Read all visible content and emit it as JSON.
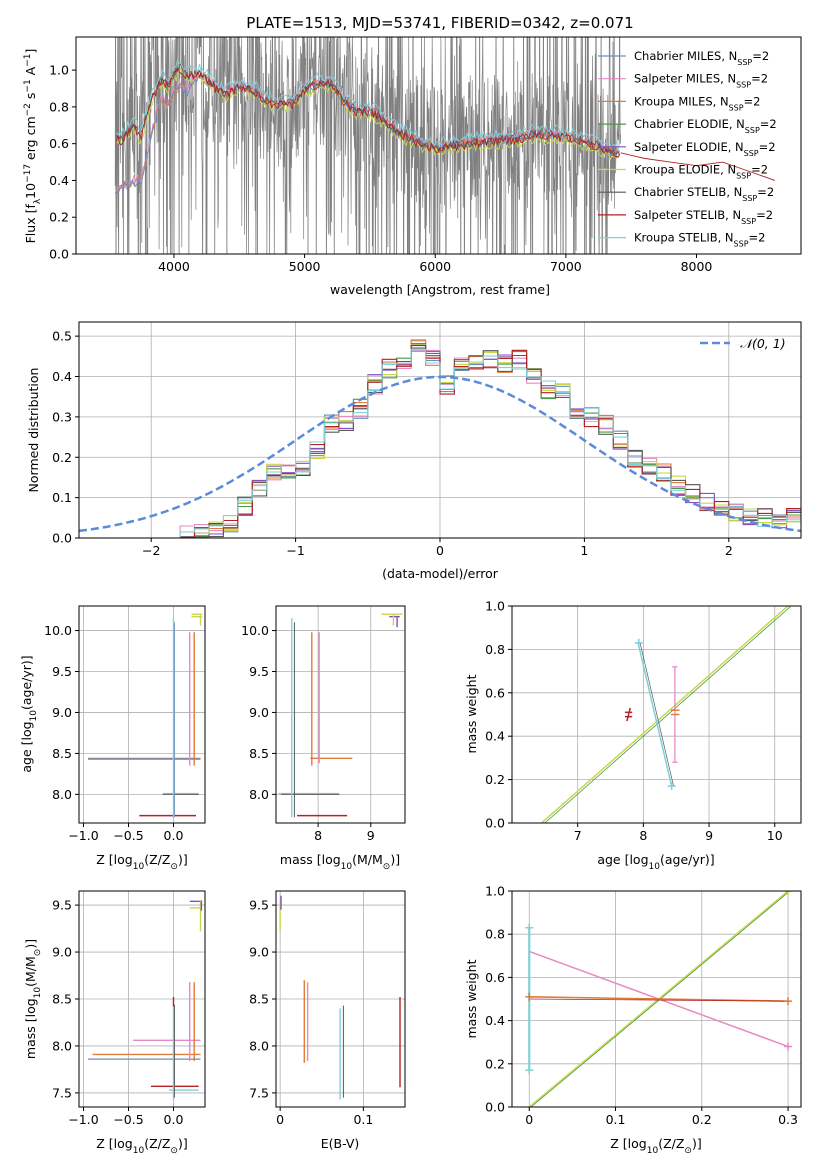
{
  "title": "PLATE=1513, MJD=53741, FIBERID=0342, z=0.071",
  "colors": {
    "gray": "#808080",
    "Chabrier MILES": "#6c8ebf",
    "Salpeter MILES": "#e58ac4",
    "Kroupa MILES": "#e07b39",
    "Chabrier ELODIE": "#4a9a4a",
    "Salpeter ELODIE": "#8a4dbf",
    "Kroupa ELODIE": "#c8d84a",
    "Chabrier STELIB": "#5a5a5a",
    "Salpeter STELIB": "#b22222",
    "Kroupa STELIB": "#7fd0d8",
    "gaussian": "#5b8bd9"
  },
  "chart_data": [
    {
      "id": "spectrum",
      "type": "line",
      "title": "PLATE=1513, MJD=53741, FIBERID=0342, z=0.071",
      "xlabel": "wavelength [Angstrom, rest frame]",
      "ylabel_main": "Flux [f",
      "ylabel_sub": "λ",
      "ylabel_rest": "10",
      "ylabel_exp": "−17",
      "ylabel_tail": " erg cm",
      "ylabel_e2": "−2",
      "ylabel_s": " s",
      "ylabel_e1": "−1",
      "ylabel_A": " A",
      "ylabel_e3": "−1",
      "ylabel_end": "]",
      "xlim": [
        3250,
        8800
      ],
      "ylim": [
        0,
        1.18
      ],
      "xticks": [
        4000,
        5000,
        6000,
        7000,
        8000
      ],
      "yticks": [
        0.0,
        0.2,
        0.4,
        0.6,
        0.8,
        1.0
      ],
      "grid": false,
      "legend_position": "top-right",
      "legend": [
        {
          "label": "Chabrier MILES, N",
          "sub": "SSP",
          "tail": "=2",
          "key": "Chabrier MILES"
        },
        {
          "label": "Salpeter MILES, N",
          "sub": "SSP",
          "tail": "=2",
          "key": "Salpeter MILES"
        },
        {
          "label": "Kroupa MILES, N",
          "sub": "SSP",
          "tail": "=2",
          "key": "Kroupa MILES"
        },
        {
          "label": "Chabrier ELODIE, N",
          "sub": "SSP",
          "tail": "=2",
          "key": "Chabrier ELODIE"
        },
        {
          "label": "Salpeter ELODIE, N",
          "sub": "SSP",
          "tail": "=2",
          "key": "Salpeter ELODIE"
        },
        {
          "label": "Kroupa ELODIE, N",
          "sub": "SSP",
          "tail": "=2",
          "key": "Kroupa ELODIE"
        },
        {
          "label": "Chabrier STELIB, N",
          "sub": "SSP",
          "tail": "=2",
          "key": "Chabrier STELIB"
        },
        {
          "label": "Salpeter STELIB, N",
          "sub": "SSP",
          "tail": "=2",
          "key": "Salpeter STELIB"
        },
        {
          "label": "Kroupa STELIB, N",
          "sub": "SSP",
          "tail": "=2",
          "key": "Kroupa STELIB"
        }
      ],
      "data_range": [
        3550,
        7420
      ],
      "model_stelib": [
        [
          3560,
          0.65
        ],
        [
          3600,
          0.62
        ],
        [
          3650,
          0.68
        ],
        [
          3700,
          0.7
        ],
        [
          3750,
          0.64
        ],
        [
          3800,
          0.78
        ],
        [
          3850,
          0.88
        ],
        [
          3900,
          0.95
        ],
        [
          3950,
          0.92
        ],
        [
          4000,
          0.98
        ],
        [
          4050,
          1.02
        ],
        [
          4100,
          0.97
        ],
        [
          4200,
          0.99
        ],
        [
          4300,
          0.92
        ],
        [
          4400,
          0.87
        ],
        [
          4500,
          0.92
        ],
        [
          4600,
          0.9
        ],
        [
          4700,
          0.84
        ],
        [
          4800,
          0.82
        ],
        [
          4900,
          0.82
        ],
        [
          5000,
          0.9
        ],
        [
          5100,
          0.93
        ],
        [
          5200,
          0.93
        ],
        [
          5300,
          0.84
        ],
        [
          5400,
          0.78
        ],
        [
          5500,
          0.78
        ],
        [
          5600,
          0.74
        ],
        [
          5700,
          0.67
        ],
        [
          5800,
          0.64
        ],
        [
          5900,
          0.6
        ],
        [
          6000,
          0.58
        ],
        [
          6200,
          0.6
        ],
        [
          6400,
          0.62
        ],
        [
          6600,
          0.63
        ],
        [
          6800,
          0.66
        ],
        [
          7000,
          0.64
        ],
        [
          7200,
          0.6
        ],
        [
          7420,
          0.55
        ]
      ],
      "model_miles": [
        [
          3550,
          0.34
        ],
        [
          3600,
          0.36
        ],
        [
          3650,
          0.38
        ],
        [
          3700,
          0.4
        ],
        [
          3750,
          0.41
        ],
        [
          3800,
          0.55
        ],
        [
          3850,
          0.72
        ],
        [
          3900,
          0.85
        ],
        [
          3950,
          0.8
        ],
        [
          4000,
          0.88
        ],
        [
          4050,
          0.92
        ],
        [
          4100,
          0.89
        ],
        [
          4200,
          0.98
        ],
        [
          4300,
          0.92
        ],
        [
          4400,
          0.87
        ],
        [
          4500,
          0.92
        ],
        [
          4600,
          0.9
        ],
        [
          4700,
          0.84
        ],
        [
          4800,
          0.8
        ],
        [
          4900,
          0.82
        ],
        [
          5000,
          0.9
        ],
        [
          5100,
          0.93
        ],
        [
          5200,
          0.93
        ],
        [
          5300,
          0.84
        ],
        [
          5400,
          0.78
        ],
        [
          5500,
          0.78
        ],
        [
          5600,
          0.74
        ],
        [
          5700,
          0.67
        ],
        [
          5800,
          0.64
        ],
        [
          5900,
          0.6
        ],
        [
          6000,
          0.58
        ],
        [
          6200,
          0.6
        ],
        [
          6400,
          0.62
        ],
        [
          6600,
          0.63
        ],
        [
          6800,
          0.66
        ],
        [
          7000,
          0.64
        ],
        [
          7200,
          0.6
        ],
        [
          7420,
          0.55
        ]
      ],
      "model_long": [
        [
          7420,
          0.55
        ],
        [
          7600,
          0.52
        ],
        [
          7800,
          0.5
        ],
        [
          8000,
          0.48
        ],
        [
          8200,
          0.5
        ],
        [
          8400,
          0.45
        ],
        [
          8600,
          0.4
        ]
      ]
    },
    {
      "id": "residuals",
      "type": "line",
      "xlabel": "(data-model)/error",
      "ylabel": "Normed distribution",
      "xlim": [
        -2.5,
        2.5
      ],
      "ylim": [
        0,
        0.535
      ],
      "xticks": [
        -2,
        -1,
        0,
        1,
        2
      ],
      "xticklabels": [
        "−2",
        "−1",
        "0",
        "1",
        "2"
      ],
      "yticks": [
        0.0,
        0.1,
        0.2,
        0.3,
        0.4,
        0.5
      ],
      "grid": true,
      "legend_position": "top-right",
      "legend_label": "𝒩(0, 1)",
      "bin_edges": [
        -1.8,
        -1.7,
        -1.6,
        -1.5,
        -1.4,
        -1.3,
        -1.2,
        -1.1,
        -1.0,
        -0.9,
        -0.8,
        -0.7,
        -0.6,
        -0.5,
        -0.4,
        -0.3,
        -0.2,
        -0.1,
        0.0,
        0.1,
        0.2,
        0.3,
        0.4,
        0.5,
        0.6,
        0.7,
        0.8,
        0.9,
        1.0,
        1.1,
        1.2,
        1.3,
        1.4,
        1.5,
        1.6,
        1.7,
        1.8,
        1.9,
        2.0,
        2.1,
        2.2,
        2.3,
        2.4,
        2.5
      ],
      "hist_base": [
        0.005,
        0.01,
        0.025,
        0.04,
        0.08,
        0.12,
        0.16,
        0.16,
        0.17,
        0.22,
        0.28,
        0.29,
        0.32,
        0.38,
        0.42,
        0.44,
        0.48,
        0.45,
        0.38,
        0.43,
        0.43,
        0.44,
        0.43,
        0.44,
        0.4,
        0.37,
        0.36,
        0.32,
        0.3,
        0.28,
        0.24,
        0.2,
        0.18,
        0.16,
        0.13,
        0.11,
        0.09,
        0.07,
        0.06,
        0.05,
        0.05,
        0.05,
        0.05
      ]
    },
    {
      "id": "age-Z",
      "type": "scatter",
      "xlabel": "Z [log",
      "xlabel_sub": "10",
      "xlabel_tail": "(Z/Z",
      "xlabel_sun": "⊙",
      "xlabel_end": ")]",
      "ylabel": "age  [log",
      "ylabel_sub": "10",
      "ylabel_tail": "(age/yr)]",
      "xlim": [
        -1.05,
        0.35
      ],
      "ylim": [
        7.65,
        10.3
      ],
      "xticks": [
        -1.0,
        -0.5,
        0.0
      ],
      "xticklabels": [
        "−1.0",
        "−0.5",
        "0.0"
      ],
      "yticks": [
        8.0,
        8.5,
        9.0,
        9.5,
        10.0
      ],
      "grid": true
    },
    {
      "id": "age-mass",
      "type": "scatter",
      "xlabel": "mass [log",
      "xlabel_sub": "10",
      "xlabel_tail": "(M/M",
      "xlabel_sun": "⊙",
      "xlabel_end": ")]",
      "xlim": [
        7.2,
        9.65
      ],
      "ylim": [
        7.65,
        10.3
      ],
      "xticks": [
        8,
        9
      ],
      "yticks": [
        8.0,
        8.5,
        9.0,
        9.5,
        10.0
      ],
      "grid": true
    },
    {
      "id": "weight-age",
      "type": "line",
      "xlabel": "age  [log",
      "xlabel_sub": "10",
      "xlabel_tail": "(age/yr)]",
      "ylabel": "mass weight",
      "xlim": [
        6.0,
        10.4
      ],
      "ylim": [
        0,
        1.0
      ],
      "xticks": [
        7,
        8,
        9,
        10
      ],
      "yticks": [
        0.0,
        0.2,
        0.4,
        0.6,
        0.8,
        1.0
      ],
      "grid": true
    },
    {
      "id": "mass-Z",
      "type": "scatter",
      "xlabel": "Z [log",
      "xlabel_sub": "10",
      "xlabel_tail": "(Z/Z",
      "xlabel_sun": "⊙",
      "xlabel_end": ")]",
      "ylabel": "mass [log",
      "ylabel_sub": "10",
      "ylabel_tail": "(M/M",
      "ylabel_sun": "⊙",
      "ylabel_end": ")]",
      "xlim": [
        -1.05,
        0.35
      ],
      "ylim": [
        7.35,
        9.65
      ],
      "xticks": [
        -1.0,
        -0.5,
        0.0
      ],
      "xticklabels": [
        "−1.0",
        "−0.5",
        "0.0"
      ],
      "yticks": [
        7.5,
        8.0,
        8.5,
        9.0,
        9.5
      ],
      "grid": true
    },
    {
      "id": "mass-EBV",
      "type": "scatter",
      "xlabel": "E(B-V)",
      "xlim": [
        -0.005,
        0.15
      ],
      "ylim": [
        7.35,
        9.65
      ],
      "xticks": [
        0.0,
        0.1
      ],
      "yticks": [
        7.5,
        8.0,
        8.5,
        9.0,
        9.5
      ],
      "grid": true
    },
    {
      "id": "weight-Z",
      "type": "line",
      "xlabel": "Z [log",
      "xlabel_sub": "10",
      "xlabel_tail": "(Z/Z",
      "xlabel_sun": "⊙",
      "xlabel_end": ")]",
      "ylabel": "mass weight",
      "xlim": [
        -0.02,
        0.315
      ],
      "ylim": [
        0,
        1.0
      ],
      "xticks": [
        0.0,
        0.1,
        0.2,
        0.3
      ],
      "yticks": [
        0.0,
        0.2,
        0.4,
        0.6,
        0.8,
        1.0
      ],
      "grid": true
    }
  ]
}
